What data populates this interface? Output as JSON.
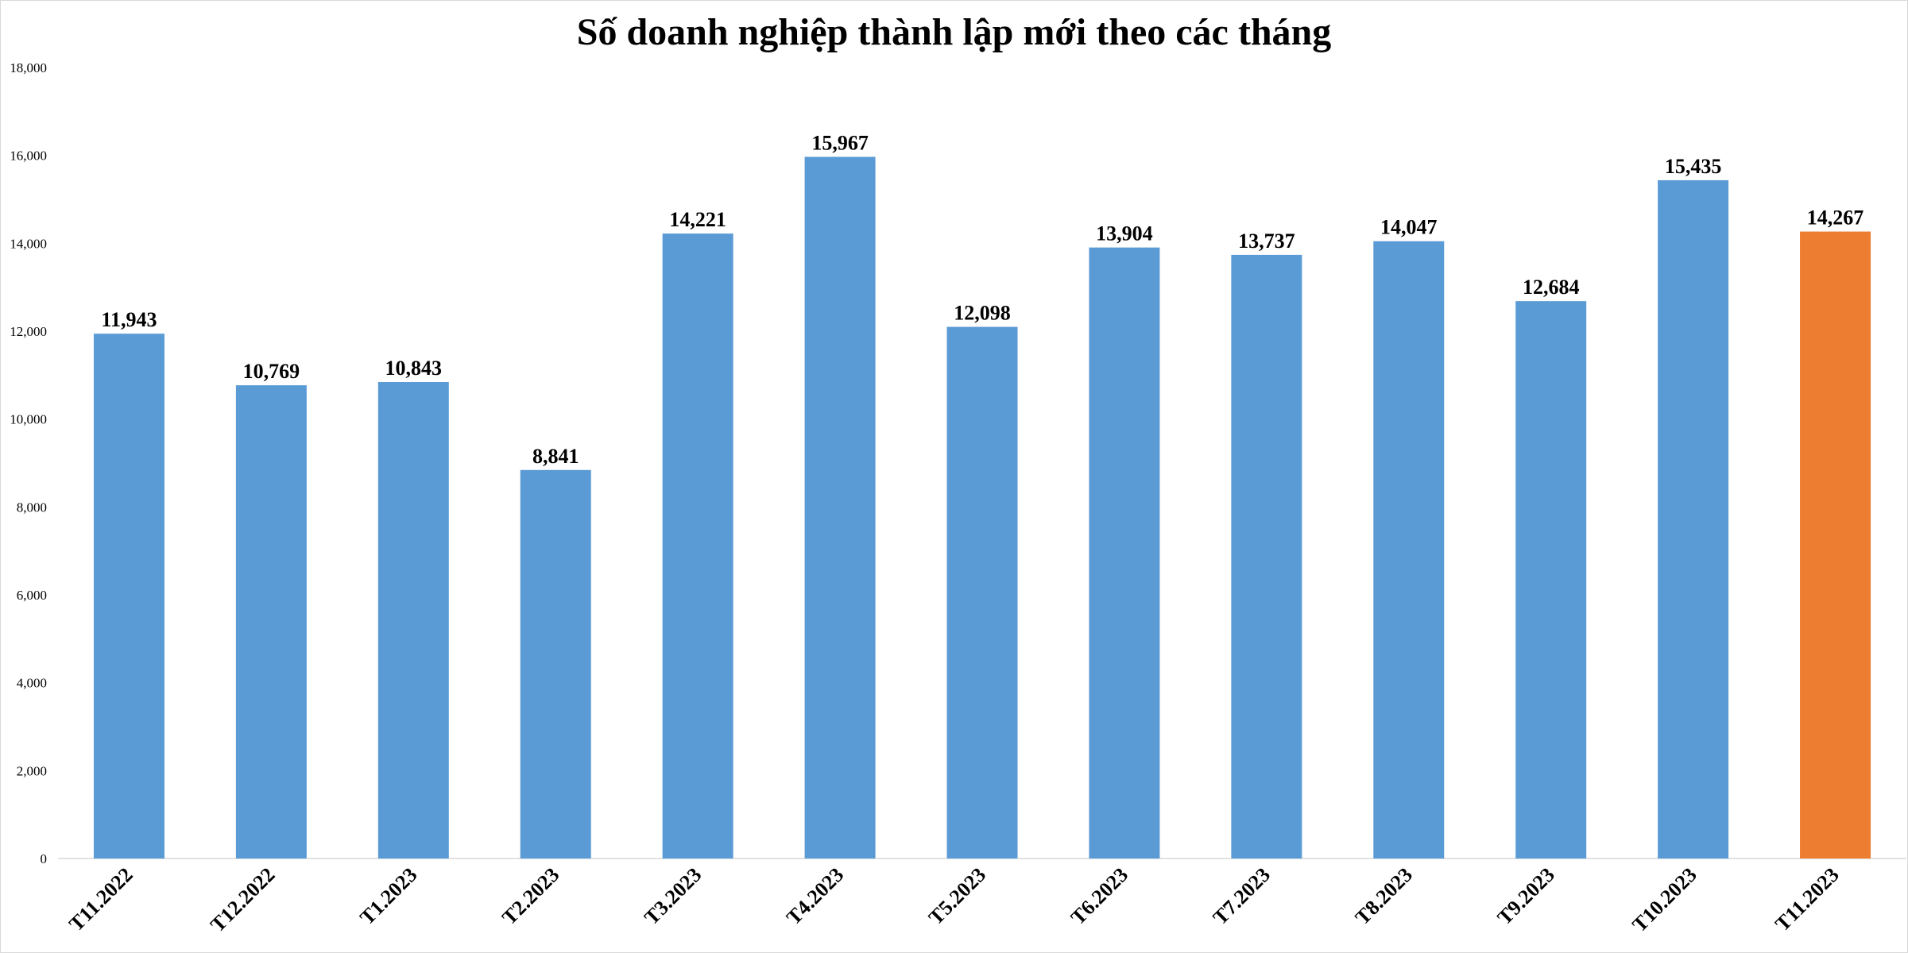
{
  "chart_data": {
    "type": "bar",
    "title": "Số doanh nghiệp thành lập mới theo các tháng",
    "xlabel": "",
    "ylabel": "",
    "categories": [
      "T11.2022",
      "T12.2022",
      "T1.2023",
      "T2.2023",
      "T3.2023",
      "T4.2023",
      "T5.2023",
      "T6.2023",
      "T7.2023",
      "T8.2023",
      "T9.2023",
      "T10.2023",
      "T11.2023"
    ],
    "values": [
      11943,
      10769,
      10843,
      8841,
      14221,
      15967,
      12098,
      13904,
      13737,
      14047,
      12684,
      15435,
      14267
    ],
    "value_labels": [
      "11,943",
      "10,769",
      "10,843",
      "8,841",
      "14,221",
      "15,967",
      "12,098",
      "13,904",
      "13,737",
      "14,047",
      "12,684",
      "15,435",
      "14,267"
    ],
    "ylim": [
      0,
      18000
    ],
    "yticks": [
      0,
      2000,
      4000,
      6000,
      8000,
      10000,
      12000,
      14000,
      16000,
      18000
    ],
    "ytick_labels": [
      "0",
      "2,000",
      "4,000",
      "6,000",
      "8,000",
      "10,000",
      "12,000",
      "14,000",
      "16,000",
      "18,000"
    ],
    "grid": false,
    "legend": "none",
    "colors": {
      "default_bar": "#5b9bd5",
      "highlight_bar": "#ed7d31",
      "axis_line": "#d9d9d9"
    },
    "highlight_category": "T11.2023"
  }
}
